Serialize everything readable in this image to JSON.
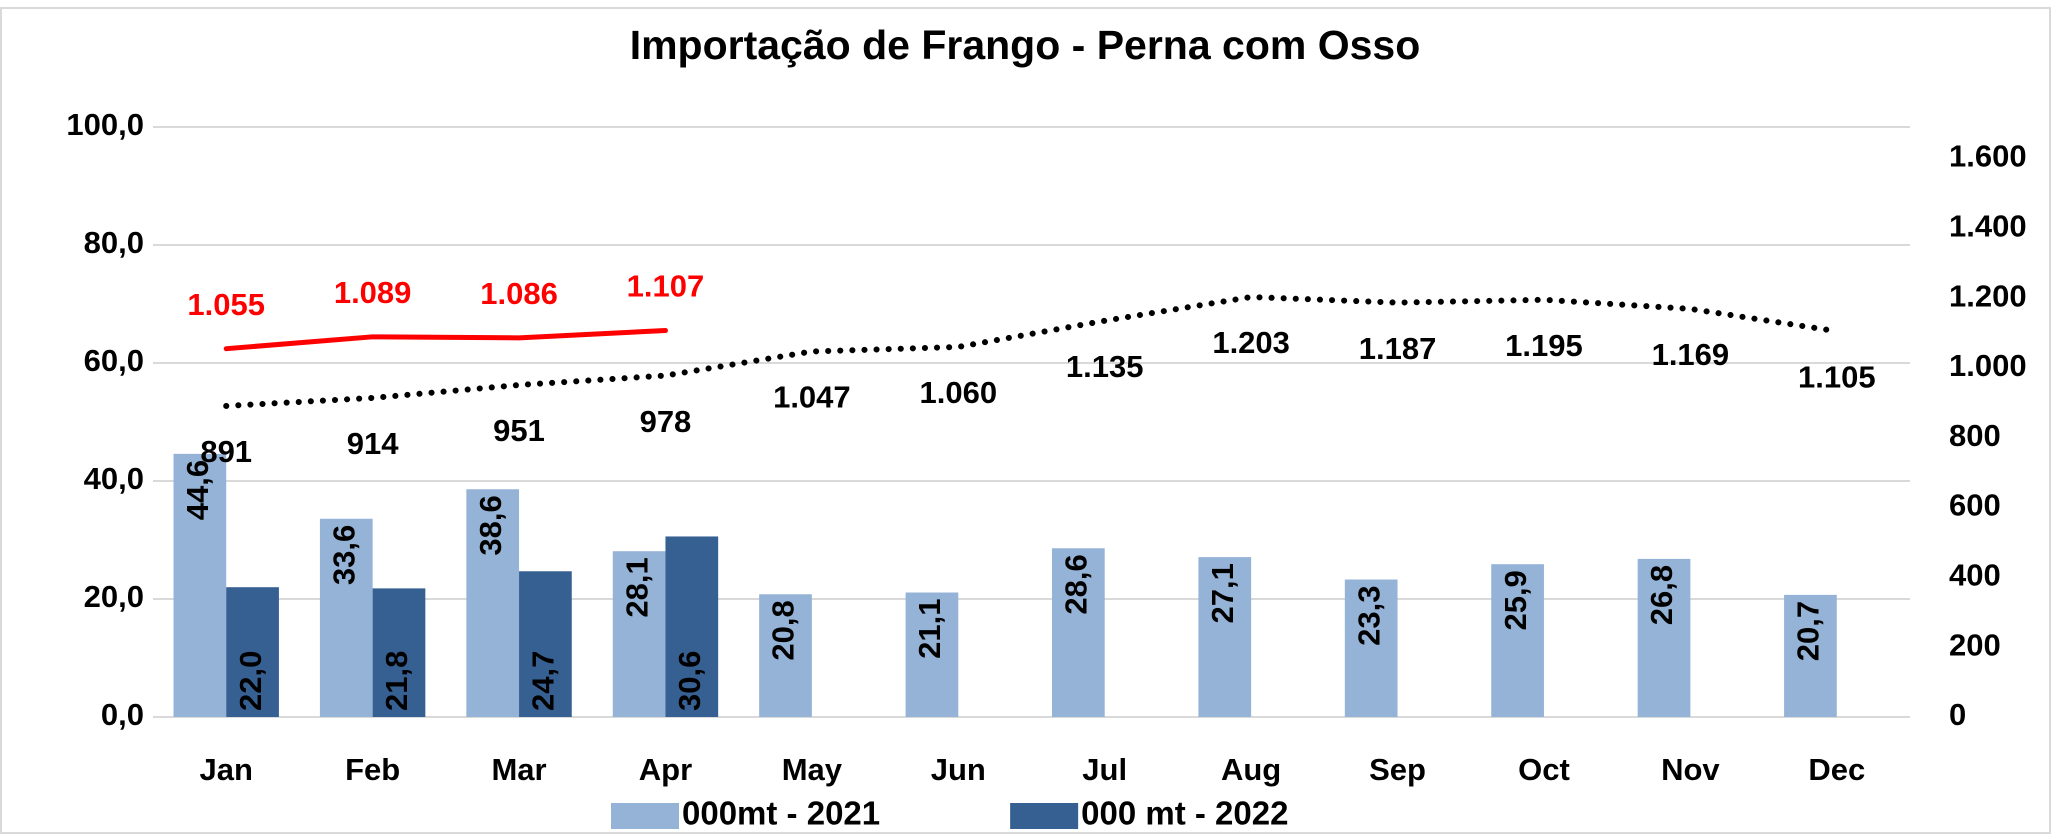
{
  "chart_data": {
    "type": "bar",
    "title": "Importação de Frango - Perna com Osso",
    "categories": [
      "Jan",
      "Feb",
      "Mar",
      "Apr",
      "May",
      "Jun",
      "Jul",
      "Aug",
      "Sep",
      "Oct",
      "Nov",
      "Dec"
    ],
    "series": [
      {
        "name": "000mt - 2021",
        "type": "bar",
        "axis": "y",
        "color": "#95b3d7",
        "values": [
          44.6,
          33.6,
          38.6,
          28.1,
          20.8,
          21.1,
          28.6,
          27.1,
          23.3,
          25.9,
          26.8,
          20.7
        ],
        "value_labels": [
          "44,6",
          "33,6",
          "38,6",
          "28,1",
          "20,8",
          "21,1",
          "28,6",
          "27,1",
          "23,3",
          "25,9",
          "26,8",
          "20,7"
        ]
      },
      {
        "name": "000 mt - 2022",
        "type": "bar",
        "axis": "y",
        "color": "#366092",
        "values": [
          22.0,
          21.8,
          24.7,
          30.6,
          null,
          null,
          null,
          null,
          null,
          null,
          null,
          null
        ],
        "value_labels": [
          "22,0",
          "21,8",
          "24,7",
          "30,6",
          null,
          null,
          null,
          null,
          null,
          null,
          null,
          null
        ]
      },
      {
        "type": "line",
        "axis": "y2",
        "color": "#ff0000",
        "dash": false,
        "values": [
          1055,
          1089,
          1086,
          1107,
          null,
          null,
          null,
          null,
          null,
          null,
          null,
          null
        ],
        "value_labels": [
          "1.055",
          "1.089",
          "1.086",
          "1.107",
          null,
          null,
          null,
          null,
          null,
          null,
          null,
          null
        ]
      },
      {
        "type": "line",
        "axis": "y2",
        "color": "#000000",
        "dash": true,
        "values": [
          891,
          914,
          951,
          978,
          1047,
          1060,
          1135,
          1203,
          1187,
          1195,
          1169,
          1105
        ],
        "value_labels": [
          "891",
          "914",
          "951",
          "978",
          "1.047",
          "1.060",
          "1.135",
          "1.203",
          "1.187",
          "1.195",
          "1.169",
          "1.105"
        ]
      }
    ],
    "ylim": [
      0,
      100
    ],
    "yticks": [
      {
        "value": 0,
        "label": "0,0"
      },
      {
        "value": 20,
        "label": "20,0"
      },
      {
        "value": 40,
        "label": "40,0"
      },
      {
        "value": 60,
        "label": "60,0"
      },
      {
        "value": 80,
        "label": "80,0"
      },
      {
        "value": 100,
        "label": "100,0"
      }
    ],
    "y2lim": [
      0,
      1690
    ],
    "y2ticks": [
      0,
      200,
      400,
      600,
      800,
      {
        "value": 1000,
        "label": "1.000"
      },
      {
        "value": 1200,
        "label": "1.200"
      },
      {
        "value": 1400,
        "label": "1.400"
      },
      {
        "value": 1600,
        "label": "1.600"
      }
    ],
    "grid": true,
    "legend": "bottom"
  }
}
